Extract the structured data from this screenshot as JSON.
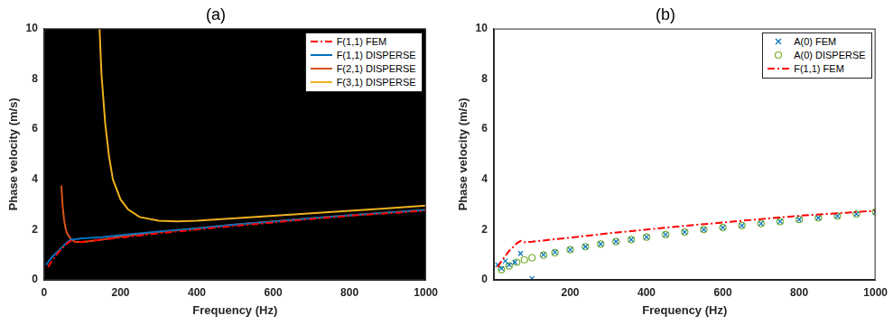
{
  "chart_data": [
    {
      "type": "line",
      "title": "(a)",
      "x_label": "Frequency (Hz)",
      "y_label": "Phase velocity (m/s)",
      "xlim": [
        0,
        1000
      ],
      "xticks": [
        0,
        200,
        400,
        600,
        800,
        1000
      ],
      "ylim": [
        0,
        10
      ],
      "yticks": [
        0,
        2,
        4,
        6,
        8,
        10
      ],
      "grid": false,
      "legend": "upper right",
      "series": [
        {
          "name": "F(1,1) FEM",
          "type": "line",
          "color": "#ff0000",
          "line_style": "dashdot",
          "x": [
            10,
            20,
            30,
            40,
            50,
            60,
            70,
            80,
            100,
            150,
            200,
            300,
            400,
            500,
            600,
            700,
            800,
            900,
            1000
          ],
          "values": [
            0.5,
            0.75,
            0.95,
            1.15,
            1.3,
            1.45,
            1.55,
            1.5,
            1.52,
            1.6,
            1.68,
            1.85,
            2.0,
            2.15,
            2.28,
            2.42,
            2.55,
            2.65,
            2.75
          ]
        },
        {
          "name": "F(1,1) DISPERSE",
          "type": "line",
          "color": "#0072bd",
          "line_style": "solid",
          "x": [
            5,
            10,
            20,
            30,
            40,
            50,
            60,
            70,
            80,
            100,
            150,
            200,
            300,
            400,
            500,
            600,
            700,
            800,
            900,
            1000
          ],
          "values": [
            0.6,
            0.7,
            0.9,
            1.05,
            1.2,
            1.35,
            1.5,
            1.6,
            1.62,
            1.65,
            1.7,
            1.78,
            1.92,
            2.05,
            2.2,
            2.32,
            2.45,
            2.57,
            2.68,
            2.78
          ]
        },
        {
          "name": "F(2,1) DISPERSE",
          "type": "line",
          "color": "#d95319",
          "line_style": "solid",
          "x": [
            45,
            48,
            52,
            56,
            60,
            70,
            80,
            100,
            150,
            200,
            300,
            400,
            500,
            600,
            700,
            800,
            900,
            1000
          ],
          "values": [
            3.75,
            3.0,
            2.4,
            2.05,
            1.85,
            1.62,
            1.52,
            1.5,
            1.6,
            1.72,
            1.9,
            2.05,
            2.2,
            2.33,
            2.45,
            2.57,
            2.68,
            2.78
          ]
        },
        {
          "name": "F(3,1) DISPERSE",
          "type": "line",
          "color": "#edb120",
          "line_style": "solid",
          "x": [
            145,
            150,
            160,
            170,
            180,
            200,
            220,
            250,
            300,
            350,
            400,
            500,
            600,
            700,
            800,
            900,
            1000
          ],
          "values": [
            10,
            8.2,
            6.2,
            4.9,
            4.0,
            3.2,
            2.8,
            2.5,
            2.35,
            2.33,
            2.35,
            2.45,
            2.55,
            2.65,
            2.75,
            2.85,
            2.95
          ]
        }
      ]
    },
    {
      "type": "line",
      "title": "(b)",
      "x_label": "Frequency (Hz)",
      "y_label": "Phase velocity (m/s)",
      "xlim": [
        0,
        1000
      ],
      "xticks": [
        200,
        400,
        600,
        800,
        1000
      ],
      "ylim": [
        0,
        10
      ],
      "yticks": [
        0,
        2,
        4,
        6,
        8,
        10
      ],
      "grid": false,
      "legend": "upper right",
      "series": [
        {
          "name": "A(0) FEM",
          "type": "scatter",
          "color": "#0072bd",
          "marker": "x",
          "x": [
            10,
            20,
            30,
            40,
            55,
            70,
            100,
            130,
            160,
            200,
            240,
            280,
            320,
            360,
            400,
            450,
            500,
            550,
            600,
            650,
            700,
            750,
            800,
            850,
            900,
            950,
            1000
          ],
          "values": [
            0.6,
            0.45,
            0.75,
            0.6,
            0.7,
            1.05,
            0.05,
            1.0,
            1.1,
            1.2,
            1.32,
            1.42,
            1.52,
            1.6,
            1.7,
            1.8,
            1.9,
            2.0,
            2.08,
            2.16,
            2.24,
            2.32,
            2.4,
            2.47,
            2.54,
            2.62,
            2.7
          ]
        },
        {
          "name": "A(0) DISPERSE",
          "type": "scatter",
          "color": "#77ac30",
          "marker": "circle",
          "x": [
            20,
            40,
            60,
            80,
            100,
            130,
            160,
            200,
            240,
            280,
            320,
            360,
            400,
            450,
            500,
            550,
            600,
            650,
            700,
            750,
            800,
            850,
            900,
            950,
            1000
          ],
          "values": [
            0.4,
            0.55,
            0.7,
            0.8,
            0.88,
            0.98,
            1.08,
            1.2,
            1.32,
            1.42,
            1.52,
            1.6,
            1.7,
            1.8,
            1.9,
            2.0,
            2.08,
            2.16,
            2.24,
            2.32,
            2.4,
            2.47,
            2.54,
            2.62,
            2.7
          ]
        },
        {
          "name": "F(1,1) FEM",
          "type": "line",
          "color": "#ff0000",
          "line_style": "dashdot",
          "x": [
            10,
            20,
            30,
            40,
            50,
            60,
            70,
            80,
            100,
            150,
            200,
            300,
            400,
            500,
            600,
            700,
            800,
            900,
            1000
          ],
          "values": [
            0.5,
            0.75,
            0.95,
            1.15,
            1.3,
            1.45,
            1.55,
            1.5,
            1.52,
            1.6,
            1.68,
            1.85,
            2.0,
            2.15,
            2.28,
            2.42,
            2.55,
            2.65,
            2.75
          ]
        }
      ]
    }
  ]
}
